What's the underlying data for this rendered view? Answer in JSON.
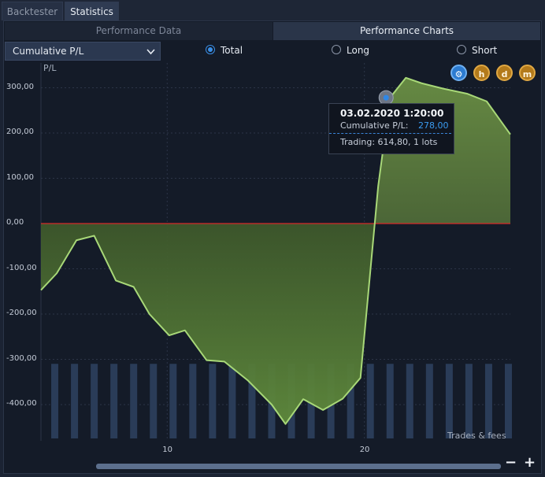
{
  "tabs": [
    {
      "label": "Backtester",
      "active": false
    },
    {
      "label": "Statistics",
      "active": true
    }
  ],
  "subtabs": [
    {
      "label": "Performance Data",
      "active": false
    },
    {
      "label": "Performance Charts",
      "active": true
    }
  ],
  "chart_selector": {
    "value": "Cumulative P/L"
  },
  "radios": [
    {
      "label": "Total",
      "checked": true
    },
    {
      "label": "Long",
      "checked": false
    },
    {
      "label": "Short",
      "checked": false
    }
  ],
  "chart_icons": [
    {
      "name": "candlestick-mode-icon",
      "glyph": "⚙",
      "color": "#2c7bd0"
    },
    {
      "name": "hour-period-icon",
      "glyph": "h",
      "color": "#b37a1b"
    },
    {
      "name": "day-period-icon",
      "glyph": "d",
      "color": "#b37a1b"
    },
    {
      "name": "minute-period-icon",
      "glyph": "m",
      "color": "#b37a1b"
    }
  ],
  "tooltip": {
    "date": "03.02.2020 1:20:00",
    "key": "Cumulative P/L:",
    "value": "278,00",
    "trading": "Trading: 614,80, 1 lots"
  },
  "trades_label": "Trades & fees",
  "zoom": {
    "minus": "−",
    "plus": "+"
  },
  "chart_data": {
    "type": "line",
    "ylabel": "P/L",
    "ylim": [
      -470,
      320
    ],
    "yticks": [
      {
        "value": 300,
        "label": "300,00"
      },
      {
        "value": 200,
        "label": "200,00"
      },
      {
        "value": 100,
        "label": "100,00"
      },
      {
        "value": 0,
        "label": "0,00"
      },
      {
        "value": -100,
        "label": "-100,00"
      },
      {
        "value": -200,
        "label": "-200,00"
      },
      {
        "value": -300,
        "label": "-300,00"
      },
      {
        "value": -400,
        "label": "-400,00"
      }
    ],
    "xlim": [
      3.6,
      27.4
    ],
    "xticks": [
      {
        "value": 10,
        "label": "10"
      },
      {
        "value": 20,
        "label": "20"
      }
    ],
    "series": [
      {
        "x": [
          3.6,
          4.4,
          5.4,
          6.3,
          7.4,
          8.3,
          9.1,
          10.1,
          10.9,
          12.0,
          12.9,
          14.1,
          15.3,
          16.0,
          16.9,
          17.9,
          18.9,
          19.8,
          20.7,
          21.3,
          22.1,
          22.9,
          24.0,
          25.2,
          26.2,
          27.4
        ],
        "values": [
          -147,
          -110,
          -37,
          -27,
          -126,
          -140,
          -200,
          -247,
          -236,
          -302,
          -305,
          -347,
          -400,
          -443,
          -388,
          -412,
          -387,
          -341,
          83,
          278,
          322,
          310,
          298,
          287,
          270,
          197
        ]
      }
    ],
    "zero_line": {
      "value": 0,
      "color": "#d62a2a"
    },
    "marker": {
      "x": 21.1,
      "value": 278
    },
    "fill_color": "#5a7f3a",
    "line_color": "#a8d878",
    "trade_bars": {
      "x": [
        4.3,
        5.3,
        6.3,
        7.3,
        8.3,
        9.3,
        10.3,
        11.3,
        12.3,
        13.3,
        14.3,
        15.3,
        16.3,
        17.3,
        18.3,
        19.3,
        20.3,
        21.3,
        22.3,
        23.3,
        24.3,
        25.3,
        26.3,
        27.3
      ],
      "top": -310,
      "color": "#2a3c58"
    },
    "grid": true
  }
}
